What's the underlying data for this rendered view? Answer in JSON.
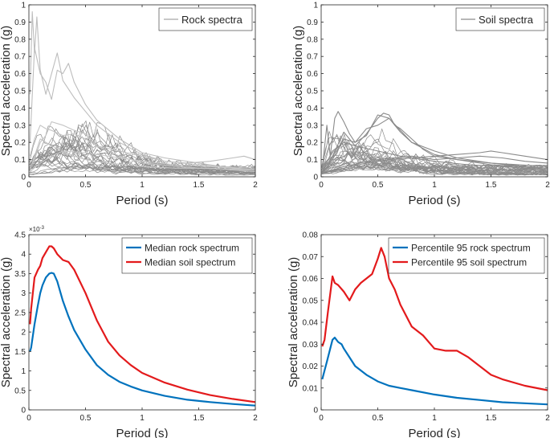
{
  "chart_data": [
    {
      "id": "rock",
      "type": "line",
      "xlabel": "Period (s)",
      "ylabel": "Spectral acceleration (g)",
      "xlim": [
        0,
        2
      ],
      "ylim": [
        0,
        1
      ],
      "xticks": [
        0,
        0.5,
        1,
        1.5,
        2
      ],
      "xtick_labels": [
        "0",
        "0.5",
        "1",
        "1.5",
        "2"
      ],
      "yticks": [
        0,
        0.1,
        0.2,
        0.3,
        0.4,
        0.5,
        0.6,
        0.7,
        0.8,
        0.9,
        1
      ],
      "ytick_labels": [
        "0",
        "0.1",
        "0.2",
        "0.3",
        "0.4",
        "0.5",
        "0.6",
        "0.7",
        "0.8",
        "0.9",
        "1"
      ],
      "legend": {
        "label": "Rock spectra",
        "position": "top-right",
        "color": "#a6a6a6"
      },
      "series": [
        {
          "name": "rock-env-1",
          "color": "#bdbdbd",
          "x": [
            0.01,
            0.03,
            0.05,
            0.07,
            0.1,
            0.15,
            0.2,
            0.25,
            0.3,
            0.4,
            0.5,
            0.6,
            0.8,
            1.0,
            1.2,
            1.4,
            1.6,
            1.8,
            1.9,
            2.0
          ],
          "values": [
            0.48,
            0.96,
            0.72,
            0.93,
            0.62,
            0.48,
            0.6,
            0.72,
            0.56,
            0.46,
            0.38,
            0.3,
            0.2,
            0.13,
            0.09,
            0.08,
            0.09,
            0.11,
            0.12,
            0.1
          ]
        },
        {
          "name": "rock-env-2",
          "color": "#bdbdbd",
          "x": [
            0.01,
            0.05,
            0.1,
            0.15,
            0.2,
            0.25,
            0.3,
            0.35,
            0.4,
            0.5,
            0.6,
            0.8,
            1.0,
            1.2,
            1.5,
            1.7,
            2.0
          ],
          "values": [
            0.2,
            0.75,
            0.6,
            0.55,
            0.45,
            0.62,
            0.6,
            0.66,
            0.55,
            0.42,
            0.33,
            0.22,
            0.14,
            0.11,
            0.08,
            0.06,
            0.05
          ]
        },
        {
          "name": "rock-env-3",
          "color": "#c4c4c4",
          "x": [
            0.01,
            0.05,
            0.1,
            0.15,
            0.2,
            0.3,
            0.4,
            0.5,
            0.6,
            0.8,
            1.0,
            1.2,
            1.5,
            2.0
          ],
          "values": [
            0.12,
            0.22,
            0.3,
            0.28,
            0.27,
            0.24,
            0.25,
            0.22,
            0.18,
            0.15,
            0.12,
            0.09,
            0.07,
            0.04
          ]
        },
        {
          "name": "rock-env-4",
          "color": "#c4c4c4",
          "x": [
            0.01,
            0.05,
            0.1,
            0.15,
            0.2,
            0.3,
            0.4,
            0.5,
            0.6,
            0.8,
            1.0,
            1.5,
            2.0
          ],
          "values": [
            0.05,
            0.1,
            0.2,
            0.24,
            0.32,
            0.3,
            0.27,
            0.25,
            0.18,
            0.12,
            0.08,
            0.05,
            0.04
          ]
        },
        {
          "name": "rock-env-5",
          "color": "#c4c4c4",
          "x": [
            0.01,
            0.05,
            0.1,
            0.2,
            0.3,
            0.4,
            0.5,
            0.7,
            1.0,
            1.3,
            1.6,
            2.0
          ],
          "values": [
            0.04,
            0.12,
            0.22,
            0.18,
            0.15,
            0.12,
            0.1,
            0.08,
            0.06,
            0.05,
            0.05,
            0.03
          ]
        },
        {
          "name": "rock-env-6",
          "color": "#c9c9c9",
          "x": [
            0.01,
            0.1,
            0.2,
            0.3,
            0.5,
            0.7,
            1.0,
            1.3,
            1.6,
            2.0
          ],
          "values": [
            0.03,
            0.08,
            0.12,
            0.15,
            0.14,
            0.12,
            0.09,
            0.07,
            0.06,
            0.04
          ]
        }
      ],
      "bundle": {
        "count": 30,
        "color": "#8c8c8c",
        "peak_min": 0.05,
        "peak_max": 0.3,
        "tail_min": 0.01,
        "tail_max": 0.05
      }
    },
    {
      "id": "soil",
      "type": "line",
      "xlabel": "Period (s)",
      "ylabel": "Spectral acceleration (g)",
      "xlim": [
        0,
        2
      ],
      "ylim": [
        0,
        1
      ],
      "xticks": [
        0,
        0.5,
        1,
        1.5,
        2
      ],
      "xtick_labels": [
        "0",
        "0.5",
        "1",
        "1.5",
        "2"
      ],
      "yticks": [
        0,
        0.1,
        0.2,
        0.3,
        0.4,
        0.5,
        0.6,
        0.7,
        0.8,
        0.9,
        1
      ],
      "ytick_labels": [
        "0",
        "0.1",
        "0.2",
        "0.3",
        "0.4",
        "0.5",
        "0.6",
        "0.7",
        "0.8",
        "0.9",
        "1"
      ],
      "legend": {
        "label": "Soil spectra",
        "position": "top-right",
        "color": "#8c8c8c"
      },
      "series": [
        {
          "name": "soil-env-1",
          "color": "#8a8a8a",
          "x": [
            0.01,
            0.05,
            0.08,
            0.12,
            0.15,
            0.2,
            0.25,
            0.3,
            0.4,
            0.5,
            0.6,
            0.7,
            0.8,
            1.0,
            1.2,
            1.5,
            1.8,
            2.0
          ],
          "values": [
            0.05,
            0.3,
            0.12,
            0.34,
            0.38,
            0.32,
            0.25,
            0.2,
            0.24,
            0.36,
            0.34,
            0.26,
            0.2,
            0.13,
            0.1,
            0.08,
            0.06,
            0.05
          ]
        },
        {
          "name": "soil-env-2",
          "color": "#8a8a8a",
          "x": [
            0.01,
            0.1,
            0.2,
            0.3,
            0.4,
            0.5,
            0.55,
            0.6,
            0.65,
            0.7,
            0.8,
            0.9,
            1.0,
            1.2,
            1.5,
            2.0
          ],
          "values": [
            0.03,
            0.15,
            0.2,
            0.18,
            0.25,
            0.34,
            0.37,
            0.36,
            0.3,
            0.28,
            0.22,
            0.16,
            0.12,
            0.1,
            0.07,
            0.05
          ]
        },
        {
          "name": "soil-env-3",
          "color": "#8a8a8a",
          "x": [
            0.01,
            0.1,
            0.2,
            0.3,
            0.4,
            0.5,
            0.6,
            0.7,
            0.8,
            1.0,
            1.2,
            1.5,
            2.0
          ],
          "values": [
            0.02,
            0.1,
            0.22,
            0.2,
            0.28,
            0.3,
            0.34,
            0.27,
            0.2,
            0.15,
            0.11,
            0.08,
            0.06
          ]
        },
        {
          "name": "soil-env-4",
          "color": "#8a8a8a",
          "x": [
            0.01,
            0.2,
            0.4,
            0.6,
            0.8,
            1.0,
            1.2,
            1.4,
            1.5,
            1.6,
            1.8,
            2.0
          ],
          "values": [
            0.02,
            0.05,
            0.08,
            0.1,
            0.11,
            0.12,
            0.13,
            0.14,
            0.15,
            0.14,
            0.12,
            0.1
          ]
        },
        {
          "name": "soil-env-5",
          "color": "#8a8a8a",
          "x": [
            0.01,
            0.2,
            0.5,
            0.8,
            1.0,
            1.2,
            1.4,
            1.6,
            1.8,
            2.0
          ],
          "values": [
            0.02,
            0.06,
            0.1,
            0.12,
            0.1,
            0.11,
            0.12,
            0.11,
            0.09,
            0.08
          ]
        },
        {
          "name": "soil-env-6",
          "color": "#8a8a8a",
          "x": [
            0.01,
            0.1,
            0.2,
            0.3,
            0.5,
            0.7,
            1.0,
            1.3,
            1.6,
            2.0
          ],
          "values": [
            0.03,
            0.12,
            0.26,
            0.18,
            0.15,
            0.12,
            0.09,
            0.07,
            0.06,
            0.04
          ]
        }
      ],
      "bundle": {
        "count": 30,
        "color": "#8c8c8c",
        "peak_min": 0.05,
        "peak_max": 0.25,
        "tail_min": 0.01,
        "tail_max": 0.06
      }
    },
    {
      "id": "median",
      "type": "line",
      "xlabel": "Period (s)",
      "ylabel": "Spectral acceleration (g)",
      "exponent_label": "×10",
      "exponent_power": "-3",
      "xlim": [
        0,
        2
      ],
      "ylim": [
        0,
        4.5
      ],
      "xticks": [
        0,
        0.5,
        1,
        1.5,
        2
      ],
      "xtick_labels": [
        "0",
        "0.5",
        "1",
        "1.5",
        "2"
      ],
      "yticks": [
        0,
        0.5,
        1,
        1.5,
        2,
        2.5,
        3,
        3.5,
        4,
        4.5
      ],
      "ytick_labels": [
        "0",
        "0.5",
        "1",
        "1.5",
        "2",
        "2.5",
        "3",
        "3.5",
        "4",
        "4.5"
      ],
      "legend_position": "top-right",
      "series": [
        {
          "name": "Median rock spectrum",
          "color": "#0072bd",
          "x": [
            0.01,
            0.02,
            0.05,
            0.08,
            0.1,
            0.12,
            0.15,
            0.18,
            0.2,
            0.22,
            0.25,
            0.3,
            0.35,
            0.4,
            0.5,
            0.6,
            0.7,
            0.8,
            0.9,
            1.0,
            1.2,
            1.4,
            1.6,
            1.8,
            2.0
          ],
          "values": [
            1.5,
            1.6,
            2.2,
            2.7,
            3.0,
            3.2,
            3.4,
            3.5,
            3.52,
            3.5,
            3.3,
            2.8,
            2.4,
            2.05,
            1.55,
            1.15,
            0.9,
            0.72,
            0.6,
            0.5,
            0.36,
            0.26,
            0.2,
            0.15,
            0.11
          ]
        },
        {
          "name": "Median soil spectrum",
          "color": "#e31a1c",
          "x": [
            0.01,
            0.02,
            0.05,
            0.08,
            0.1,
            0.12,
            0.15,
            0.18,
            0.2,
            0.22,
            0.25,
            0.3,
            0.35,
            0.4,
            0.5,
            0.6,
            0.7,
            0.8,
            0.9,
            1.0,
            1.2,
            1.4,
            1.6,
            1.8,
            2.0
          ],
          "values": [
            2.2,
            2.6,
            3.4,
            3.6,
            3.7,
            3.9,
            4.05,
            4.2,
            4.2,
            4.15,
            4.0,
            3.85,
            3.8,
            3.6,
            3.0,
            2.3,
            1.75,
            1.4,
            1.15,
            0.95,
            0.7,
            0.52,
            0.38,
            0.28,
            0.2
          ]
        }
      ]
    },
    {
      "id": "p95",
      "type": "line",
      "xlabel": "Period (s)",
      "ylabel": "Spectral acceleration (g)",
      "xlim": [
        0,
        2
      ],
      "ylim": [
        0,
        0.08
      ],
      "xticks": [
        0,
        0.5,
        1,
        1.5,
        2
      ],
      "xtick_labels": [
        "0",
        "0.5",
        "1",
        "1.5",
        "2"
      ],
      "yticks": [
        0,
        0.01,
        0.02,
        0.03,
        0.04,
        0.05,
        0.06,
        0.07,
        0.08
      ],
      "ytick_labels": [
        "0",
        "0.01",
        "0.02",
        "0.03",
        "0.04",
        "0.05",
        "0.06",
        "0.07",
        "0.08"
      ],
      "legend_position": "top-right",
      "series": [
        {
          "name": "Percentile 95 rock spectrum",
          "color": "#0072bd",
          "x": [
            0.01,
            0.02,
            0.05,
            0.08,
            0.1,
            0.12,
            0.15,
            0.18,
            0.2,
            0.25,
            0.3,
            0.4,
            0.5,
            0.6,
            0.7,
            0.8,
            1.0,
            1.2,
            1.4,
            1.6,
            1.8,
            2.0
          ],
          "values": [
            0.014,
            0.016,
            0.022,
            0.028,
            0.032,
            0.033,
            0.031,
            0.03,
            0.028,
            0.024,
            0.02,
            0.016,
            0.013,
            0.011,
            0.01,
            0.009,
            0.007,
            0.0055,
            0.0045,
            0.0035,
            0.003,
            0.0025
          ]
        },
        {
          "name": "Percentile 95 soil spectrum",
          "color": "#e31a1c",
          "x": [
            0.01,
            0.03,
            0.06,
            0.1,
            0.12,
            0.15,
            0.2,
            0.25,
            0.3,
            0.35,
            0.4,
            0.45,
            0.5,
            0.53,
            0.56,
            0.6,
            0.65,
            0.7,
            0.8,
            0.9,
            1.0,
            1.1,
            1.2,
            1.3,
            1.4,
            1.5,
            1.6,
            1.8,
            2.0
          ],
          "values": [
            0.029,
            0.032,
            0.045,
            0.061,
            0.058,
            0.057,
            0.054,
            0.05,
            0.055,
            0.058,
            0.06,
            0.062,
            0.069,
            0.074,
            0.07,
            0.06,
            0.055,
            0.048,
            0.038,
            0.034,
            0.028,
            0.027,
            0.027,
            0.024,
            0.02,
            0.016,
            0.014,
            0.011,
            0.009
          ]
        }
      ]
    }
  ]
}
